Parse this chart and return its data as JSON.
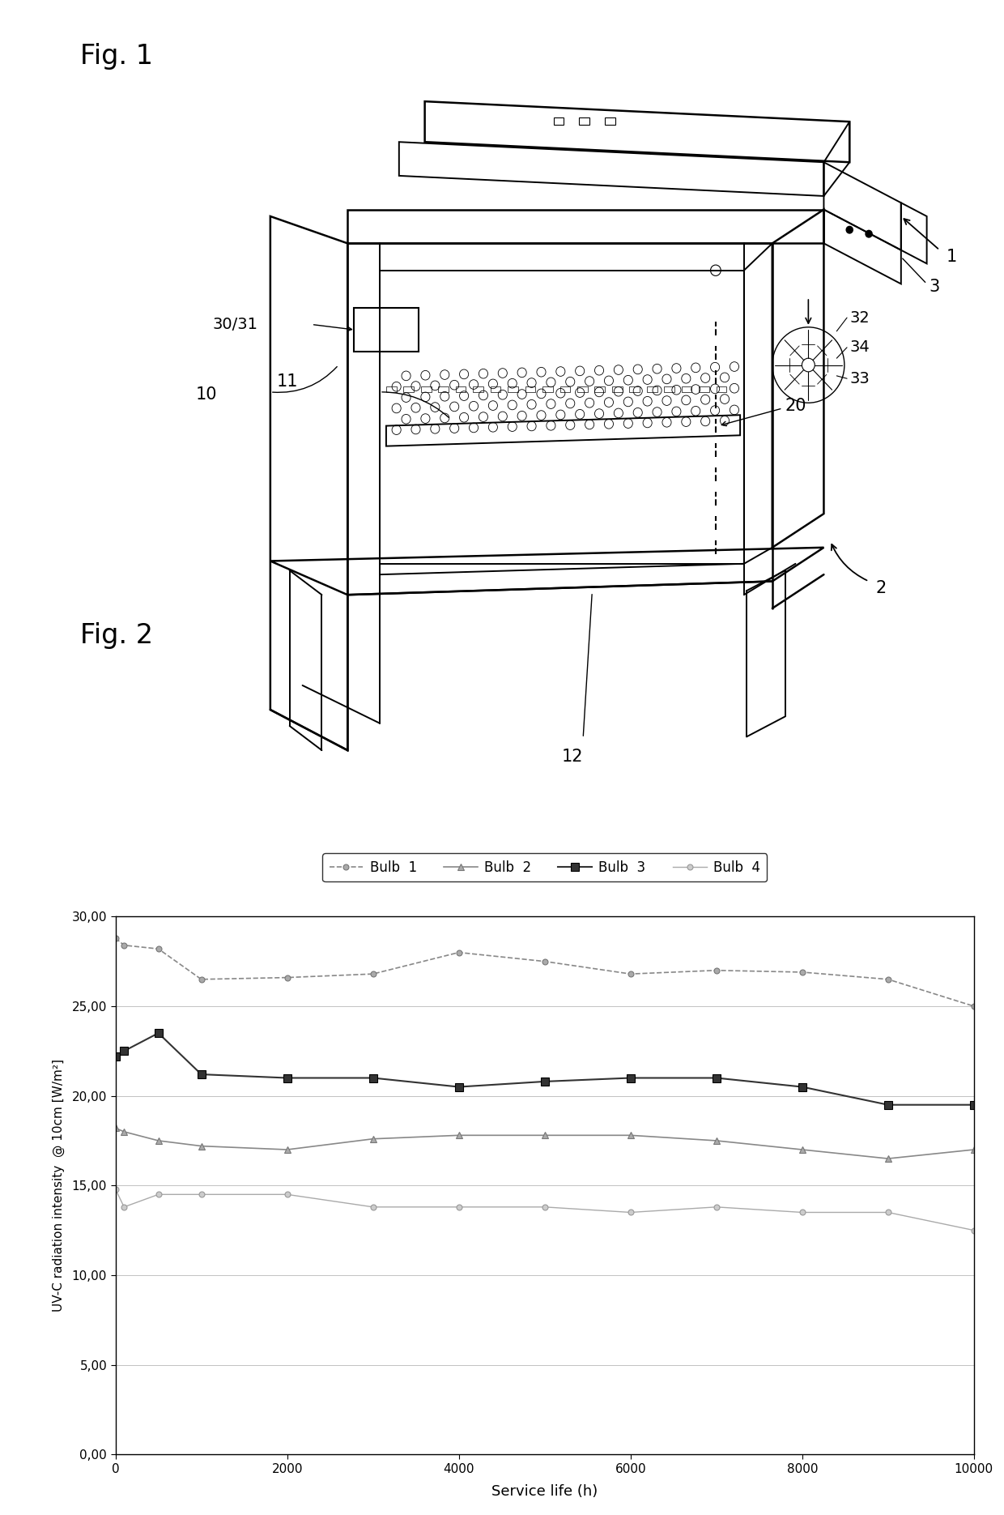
{
  "fig1_label": "Fig. 1",
  "fig2_label": "Fig. 2",
  "bg_color": "#ffffff",
  "chart": {
    "xlabel": "Service life (h)",
    "ylabel": "UV-C radiation intensity  @ 10cm [W/m²]",
    "xlim": [
      0,
      10000
    ],
    "ylim": [
      0.0,
      30.0
    ],
    "xticks": [
      0,
      2000,
      4000,
      6000,
      8000,
      10000
    ],
    "yticks": [
      0.0,
      5.0,
      10.0,
      15.0,
      20.0,
      25.0,
      30.0
    ],
    "ytick_labels": [
      "0,00",
      "5,00",
      "10,00",
      "15,00",
      "20,00",
      "25,00",
      "30,00"
    ],
    "legend_labels": [
      "Bulb  1",
      "Bulb  2",
      "Bulb  3",
      "Bulb  4"
    ],
    "bulb1": {
      "x": [
        0,
        100,
        500,
        1000,
        2000,
        3000,
        4000,
        5000,
        6000,
        7000,
        8000,
        9000,
        10000
      ],
      "y": [
        28.8,
        28.4,
        28.2,
        26.5,
        26.6,
        26.8,
        28.0,
        27.5,
        26.8,
        27.0,
        26.9,
        26.5,
        25.0
      ],
      "color": "#888888",
      "marker": "o",
      "markersize": 5,
      "linestyle": "--"
    },
    "bulb2": {
      "x": [
        0,
        100,
        500,
        1000,
        2000,
        3000,
        4000,
        5000,
        6000,
        7000,
        8000,
        9000,
        10000
      ],
      "y": [
        18.2,
        18.0,
        17.5,
        17.2,
        17.0,
        17.6,
        17.8,
        17.8,
        17.8,
        17.5,
        17.0,
        16.5,
        17.0
      ],
      "color": "#888888",
      "marker": "^",
      "markersize": 6,
      "linestyle": "-"
    },
    "bulb3": {
      "x": [
        0,
        100,
        500,
        1000,
        2000,
        3000,
        4000,
        5000,
        6000,
        7000,
        8000,
        9000,
        10000
      ],
      "y": [
        22.2,
        22.5,
        23.5,
        21.2,
        21.0,
        21.0,
        20.5,
        20.8,
        21.0,
        21.0,
        20.5,
        19.5,
        19.5
      ],
      "color": "#333333",
      "marker": "s",
      "markersize": 7,
      "linestyle": "-"
    },
    "bulb4": {
      "x": [
        0,
        100,
        500,
        1000,
        2000,
        3000,
        4000,
        5000,
        6000,
        7000,
        8000,
        9000,
        10000
      ],
      "y": [
        14.8,
        13.8,
        14.5,
        14.5,
        14.5,
        13.8,
        13.8,
        13.8,
        13.5,
        13.8,
        13.5,
        13.5,
        12.5
      ],
      "color": "#aaaaaa",
      "marker": "o",
      "markersize": 5,
      "linestyle": "-"
    }
  }
}
